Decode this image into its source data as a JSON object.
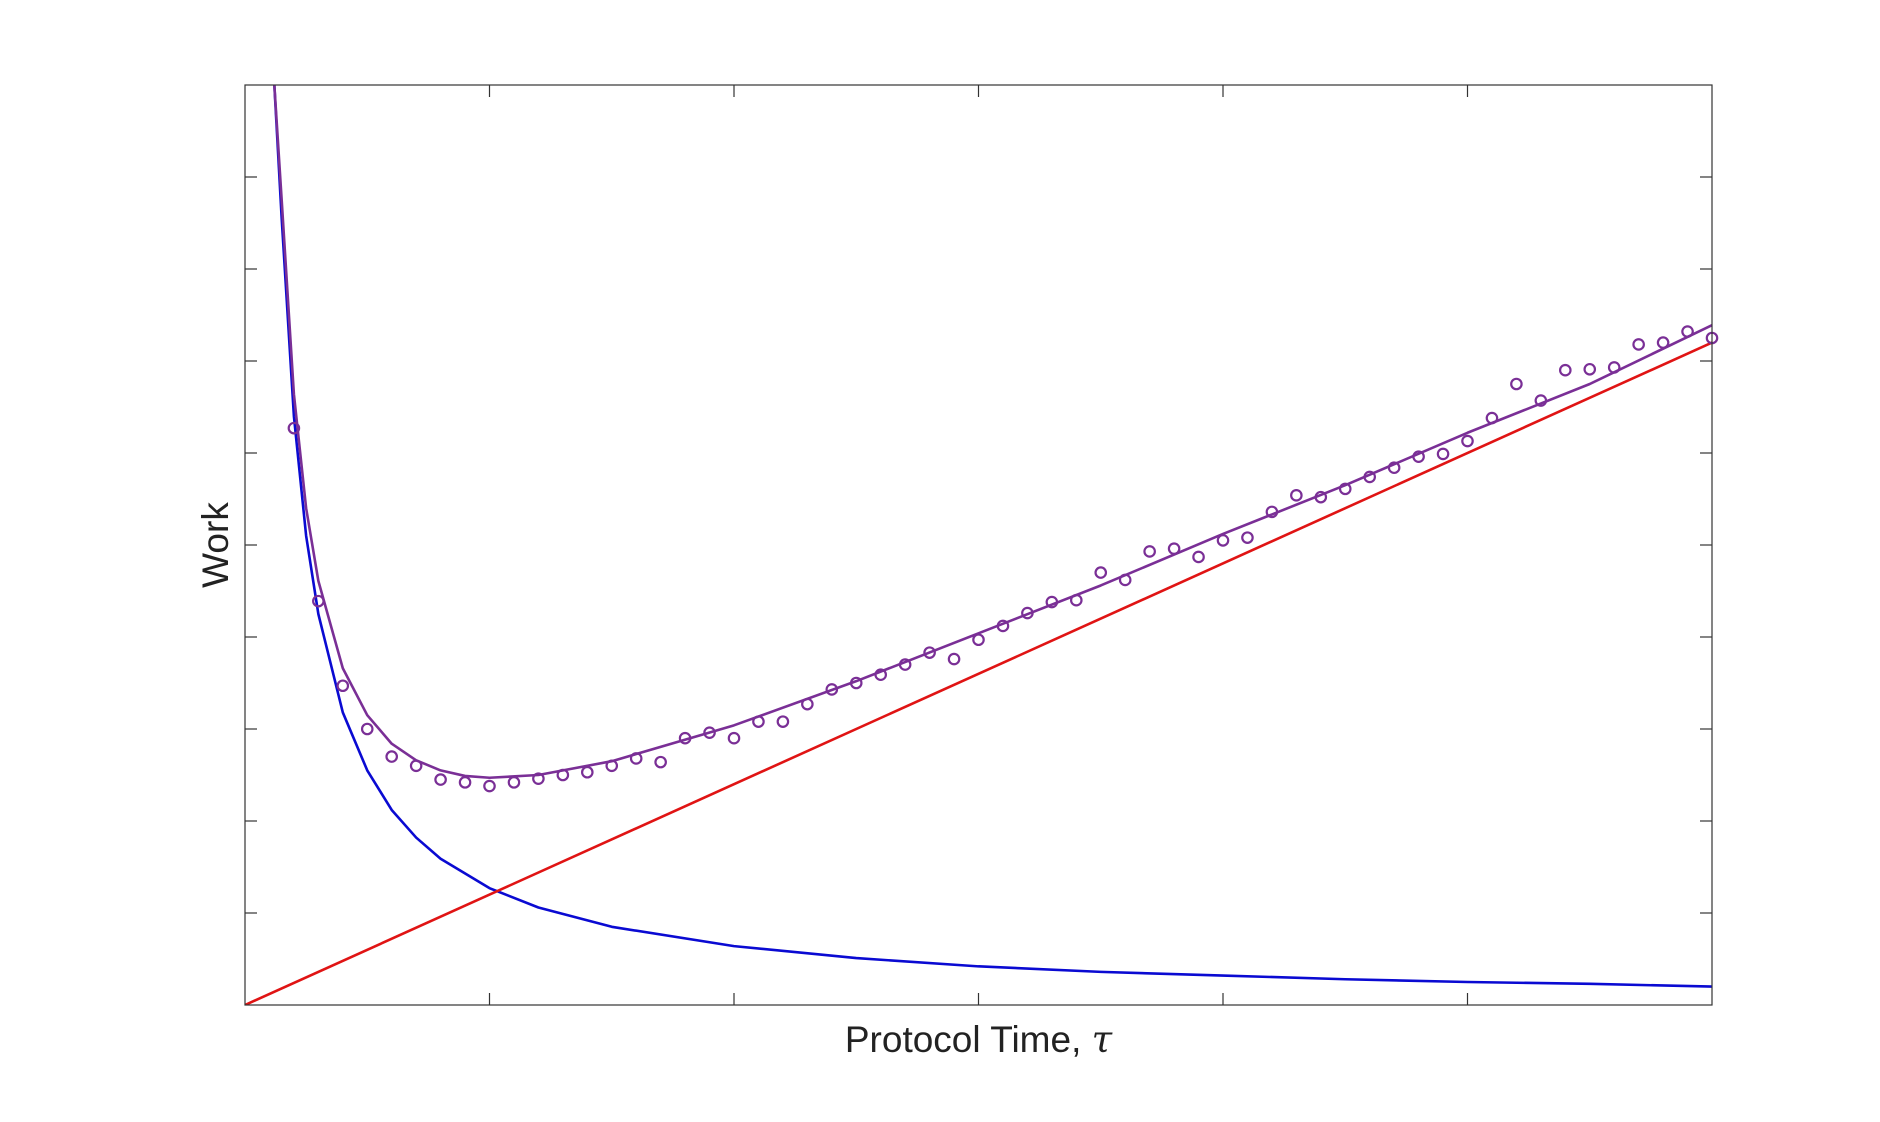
{
  "chart_data": {
    "type": "line",
    "title": "",
    "xlabel": "Protocol Time, ",
    "xlabel_symbol": "τ",
    "ylabel": "Work",
    "xlim": [
      0,
      6
    ],
    "ylim": [
      0,
      10
    ],
    "x_ticks": [
      0,
      1,
      2,
      3,
      4,
      5,
      6
    ],
    "y_ticks": [
      0,
      1,
      2,
      3,
      4,
      5,
      6,
      7,
      8,
      9,
      10
    ],
    "tick_labels_shown": false,
    "grid": false,
    "legend": "none",
    "series": [
      {
        "kind": "line",
        "color": "#0a0ad2",
        "x": [
          0.12,
          0.15,
          0.2,
          0.25,
          0.3,
          0.4,
          0.5,
          0.6,
          0.7,
          0.8,
          1.0,
          1.2,
          1.5,
          2.0,
          2.5,
          3.0,
          3.5,
          4.0,
          4.5,
          5.0,
          5.5,
          6.0
        ],
        "y": [
          10.0,
          8.55,
          6.4,
          5.1,
          4.25,
          3.18,
          2.55,
          2.12,
          1.82,
          1.59,
          1.27,
          1.06,
          0.85,
          0.64,
          0.51,
          0.42,
          0.36,
          0.32,
          0.28,
          0.25,
          0.23,
          0.2
        ]
      },
      {
        "kind": "line",
        "color": "#e01414",
        "x": [
          0,
          6
        ],
        "y": [
          0,
          7.2
        ]
      },
      {
        "kind": "line",
        "color": "#7a2f96",
        "x": [
          0.12,
          0.15,
          0.2,
          0.25,
          0.3,
          0.4,
          0.5,
          0.6,
          0.7,
          0.8,
          0.9,
          1.0,
          1.2,
          1.5,
          2.0,
          2.5,
          3.0,
          3.5,
          4.0,
          4.5,
          5.0,
          5.5,
          6.0
        ],
        "y": [
          10.0,
          8.75,
          6.64,
          5.4,
          4.61,
          3.66,
          3.15,
          2.84,
          2.66,
          2.55,
          2.49,
          2.47,
          2.5,
          2.65,
          3.04,
          3.52,
          4.04,
          4.56,
          5.12,
          5.65,
          6.22,
          6.75,
          7.39
        ]
      },
      {
        "kind": "scatter",
        "color": "#7a2f96",
        "x": [
          0.2,
          0.3,
          0.4,
          0.5,
          0.6,
          0.7,
          0.8,
          0.9,
          1.0,
          1.1,
          1.2,
          1.3,
          1.4,
          1.5,
          1.6,
          1.7,
          1.8,
          1.9,
          2.0,
          2.1,
          2.2,
          2.3,
          2.4,
          2.5,
          2.6,
          2.7,
          2.8,
          2.9,
          3.0,
          3.1,
          3.2,
          3.3,
          3.4,
          3.5,
          3.6,
          3.7,
          3.8,
          3.9,
          4.0,
          4.1,
          4.2,
          4.3,
          4.4,
          4.5,
          4.6,
          4.7,
          4.8,
          4.9,
          5.0,
          5.1,
          5.2,
          5.3,
          5.4,
          5.5,
          5.6,
          5.7,
          5.8,
          5.9,
          6.0
        ],
        "y": [
          6.27,
          4.39,
          3.47,
          3.0,
          2.7,
          2.6,
          2.45,
          2.42,
          2.38,
          2.42,
          2.46,
          2.5,
          2.53,
          2.6,
          2.68,
          2.64,
          2.9,
          2.96,
          2.9,
          3.08,
          3.08,
          3.27,
          3.43,
          3.5,
          3.59,
          3.7,
          3.83,
          3.76,
          3.97,
          4.12,
          4.26,
          4.38,
          4.4,
          4.7,
          4.62,
          4.93,
          4.96,
          4.87,
          5.05,
          5.08,
          5.36,
          5.54,
          5.52,
          5.61,
          5.74,
          5.84,
          5.96,
          5.99,
          6.13,
          6.38,
          6.75,
          6.57,
          6.9,
          6.91,
          6.93,
          7.18,
          7.2,
          7.32,
          7.25
        ]
      }
    ]
  }
}
